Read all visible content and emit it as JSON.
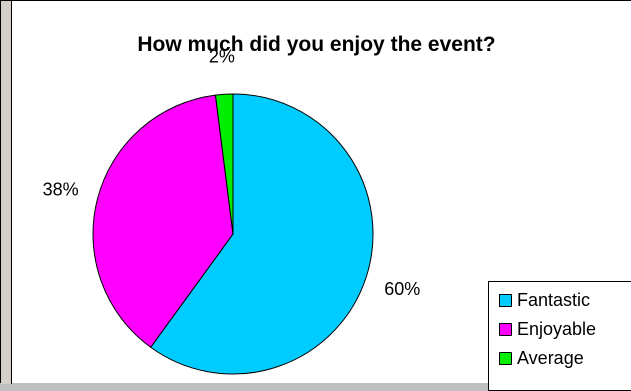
{
  "chart_data": {
    "type": "pie",
    "title": "How much did you enjoy the event?",
    "categories": [
      "Fantastic",
      "Enjoyable",
      "Average"
    ],
    "values": [
      60,
      38,
      2
    ],
    "data_labels": [
      "60%",
      "38%",
      "2%"
    ],
    "colors": [
      "#00ccff",
      "#ff00ff",
      "#00ee00"
    ],
    "legend_position": "bottom-right"
  }
}
